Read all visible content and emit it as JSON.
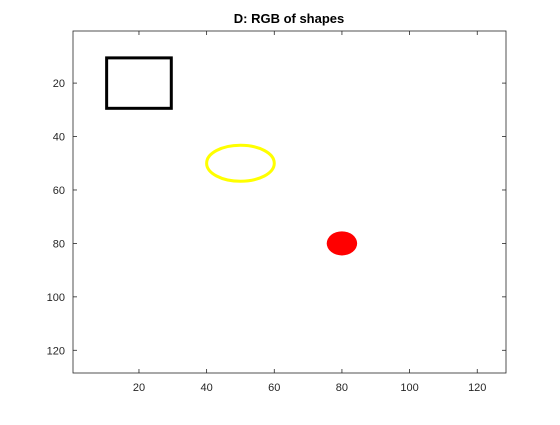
{
  "chart_data": {
    "type": "image",
    "title": "D: RGB of shapes",
    "xlabel": "",
    "ylabel": "",
    "xlim": [
      0.5,
      128.5
    ],
    "ylim": [
      0.5,
      128.5
    ],
    "y_axis_reversed": true,
    "grid": false,
    "background_color": "#ffffff",
    "x_ticks": [
      20,
      40,
      60,
      80,
      100,
      120
    ],
    "y_ticks": [
      20,
      40,
      60,
      80,
      100,
      120
    ],
    "shapes": [
      {
        "kind": "rectangle",
        "style": "outline",
        "color": "#000000",
        "x": [
          10,
          30
        ],
        "y": [
          10,
          30
        ]
      },
      {
        "kind": "ellipse",
        "style": "outline",
        "color": "#ffff00",
        "center": [
          50,
          50
        ],
        "radius": [
          10,
          6
        ]
      },
      {
        "kind": "disk",
        "style": "filled",
        "color": "#ff0000",
        "center": [
          80,
          80
        ],
        "radius": [
          4.5,
          4.5
        ]
      }
    ]
  }
}
